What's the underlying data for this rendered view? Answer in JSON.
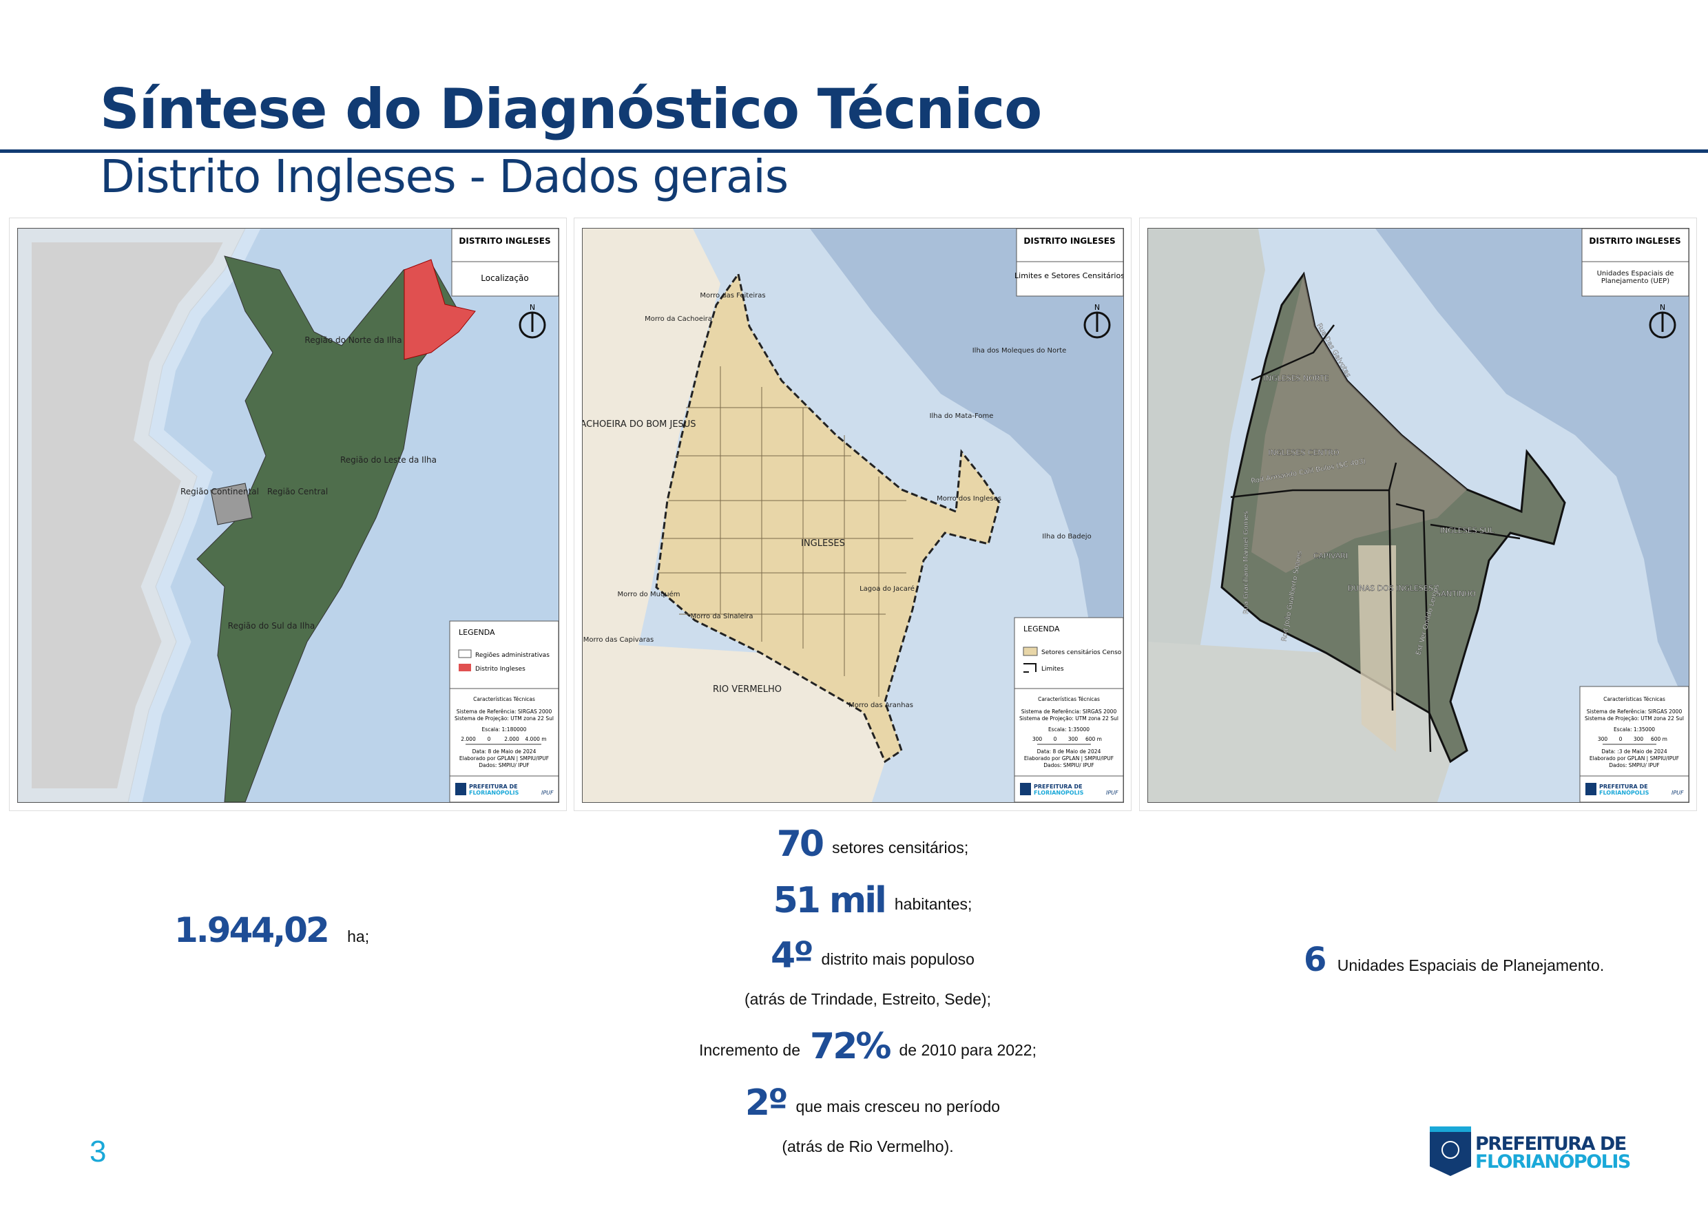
{
  "header": {
    "title": "Síntese do Diagnóstico Técnico",
    "subtitle": "Distrito Ingleses - Dados gerais"
  },
  "colors": {
    "brand_dark": "#113b73",
    "brand_accent": "#1aa8d8",
    "district_red": "#e05050",
    "sector_tan": "#e8d6a8"
  },
  "common": {
    "district": "DISTRITO INGLESES",
    "north": "N",
    "legend_title": "LEGENDA",
    "tech_title": "Características Técnicas",
    "ref": "Sistema de Referência: SIRGAS 2000",
    "proj": "Sistema de Projeção: UTM zona 22 Sul",
    "made_by": "Elaborado por GPLAN | SMPIU/IPUF",
    "source": "Dados: SMPIU/ IPUF",
    "logo_line1": "PREFEITURA DE",
    "logo_line2": "FLORIANÓPOLIS",
    "ipuf": "IPUF"
  },
  "maps": [
    {
      "subtitle": "Localização",
      "legend": [
        "Regiões administrativas",
        "Distrito Ingleses"
      ],
      "scale": "Escala: 1:180000",
      "scalebar": [
        "2.000",
        "0",
        "2.000",
        "4.000 m"
      ],
      "date": "Data: 8 de Maio de 2024",
      "labels": [
        "Região do Norte da Ilha",
        "Região do Leste da Ilha",
        "Região Continental",
        "Região Central",
        "Região do Sul da Ilha"
      ]
    },
    {
      "subtitle": "Limites e Setores Censitários",
      "legend": [
        "Setores censitários Censo 2022",
        "Limites"
      ],
      "scale": "Escala: 1:35000",
      "scalebar": [
        "300",
        "0",
        "300",
        "600 m"
      ],
      "date": "Data: 8 de Maio de 2024",
      "labels": [
        "Morro das Feiteiras",
        "Morro da Cachoeira",
        "CACHOEIRA DO BOM JESUS",
        "Ilha dos Moleques do Norte",
        "Ilha do Mata-Fome",
        "Morro dos Ingleses",
        "Ilha do Badejo",
        "INGLESES",
        "Lagoa do Jacaré",
        "Morro do Muquém",
        "Morro da Sinaleira",
        "Morro das Capivaras",
        "RIO VERMELHO",
        "Morro das Aranhas"
      ]
    },
    {
      "subtitle": "Unidades Espaciais de Planejamento (UEP)",
      "scale": "Escala: 1:35000",
      "scalebar": [
        "300",
        "0",
        "300",
        "600 m"
      ],
      "date": "Data: :3 de Maio de 2024",
      "labels": [
        "INGLESES NORTE",
        "INGLESES CENTRO",
        "CAPIVARI",
        "DUNAS DOS INGLESES",
        "SANTINHO",
        "INGLESES SUL"
      ],
      "roads": [
        "Rod Armando Calil Bulos (SC 403)",
        "Rua Das Gaivotas",
        "Rua Graciliano Manoel Gomes",
        "Rod João Gualberto Soares",
        "Est Ver Onildo Lemos"
      ]
    }
  ],
  "stats": {
    "area": {
      "value": "1.944,02",
      "unit": "ha;"
    },
    "sectors": {
      "value": "70",
      "text": "setores censitários;"
    },
    "population": {
      "value": "51 mil",
      "text": "habitantes;"
    },
    "rank": {
      "value": "4º",
      "text": "distrito mais populoso",
      "note": "(atrás de Trindade, Estreito, Sede);"
    },
    "growth": {
      "prefix": "Incremento de",
      "value": "72%",
      "text": "de 2010 para 2022;"
    },
    "growth_rank": {
      "value": "2º",
      "text": "que mais cresceu no período",
      "note": "(atrás de Rio Vermelho)."
    },
    "ueps": {
      "value": "6",
      "text": "Unidades Espaciais de Planejamento."
    }
  },
  "footer": {
    "page": "3"
  }
}
